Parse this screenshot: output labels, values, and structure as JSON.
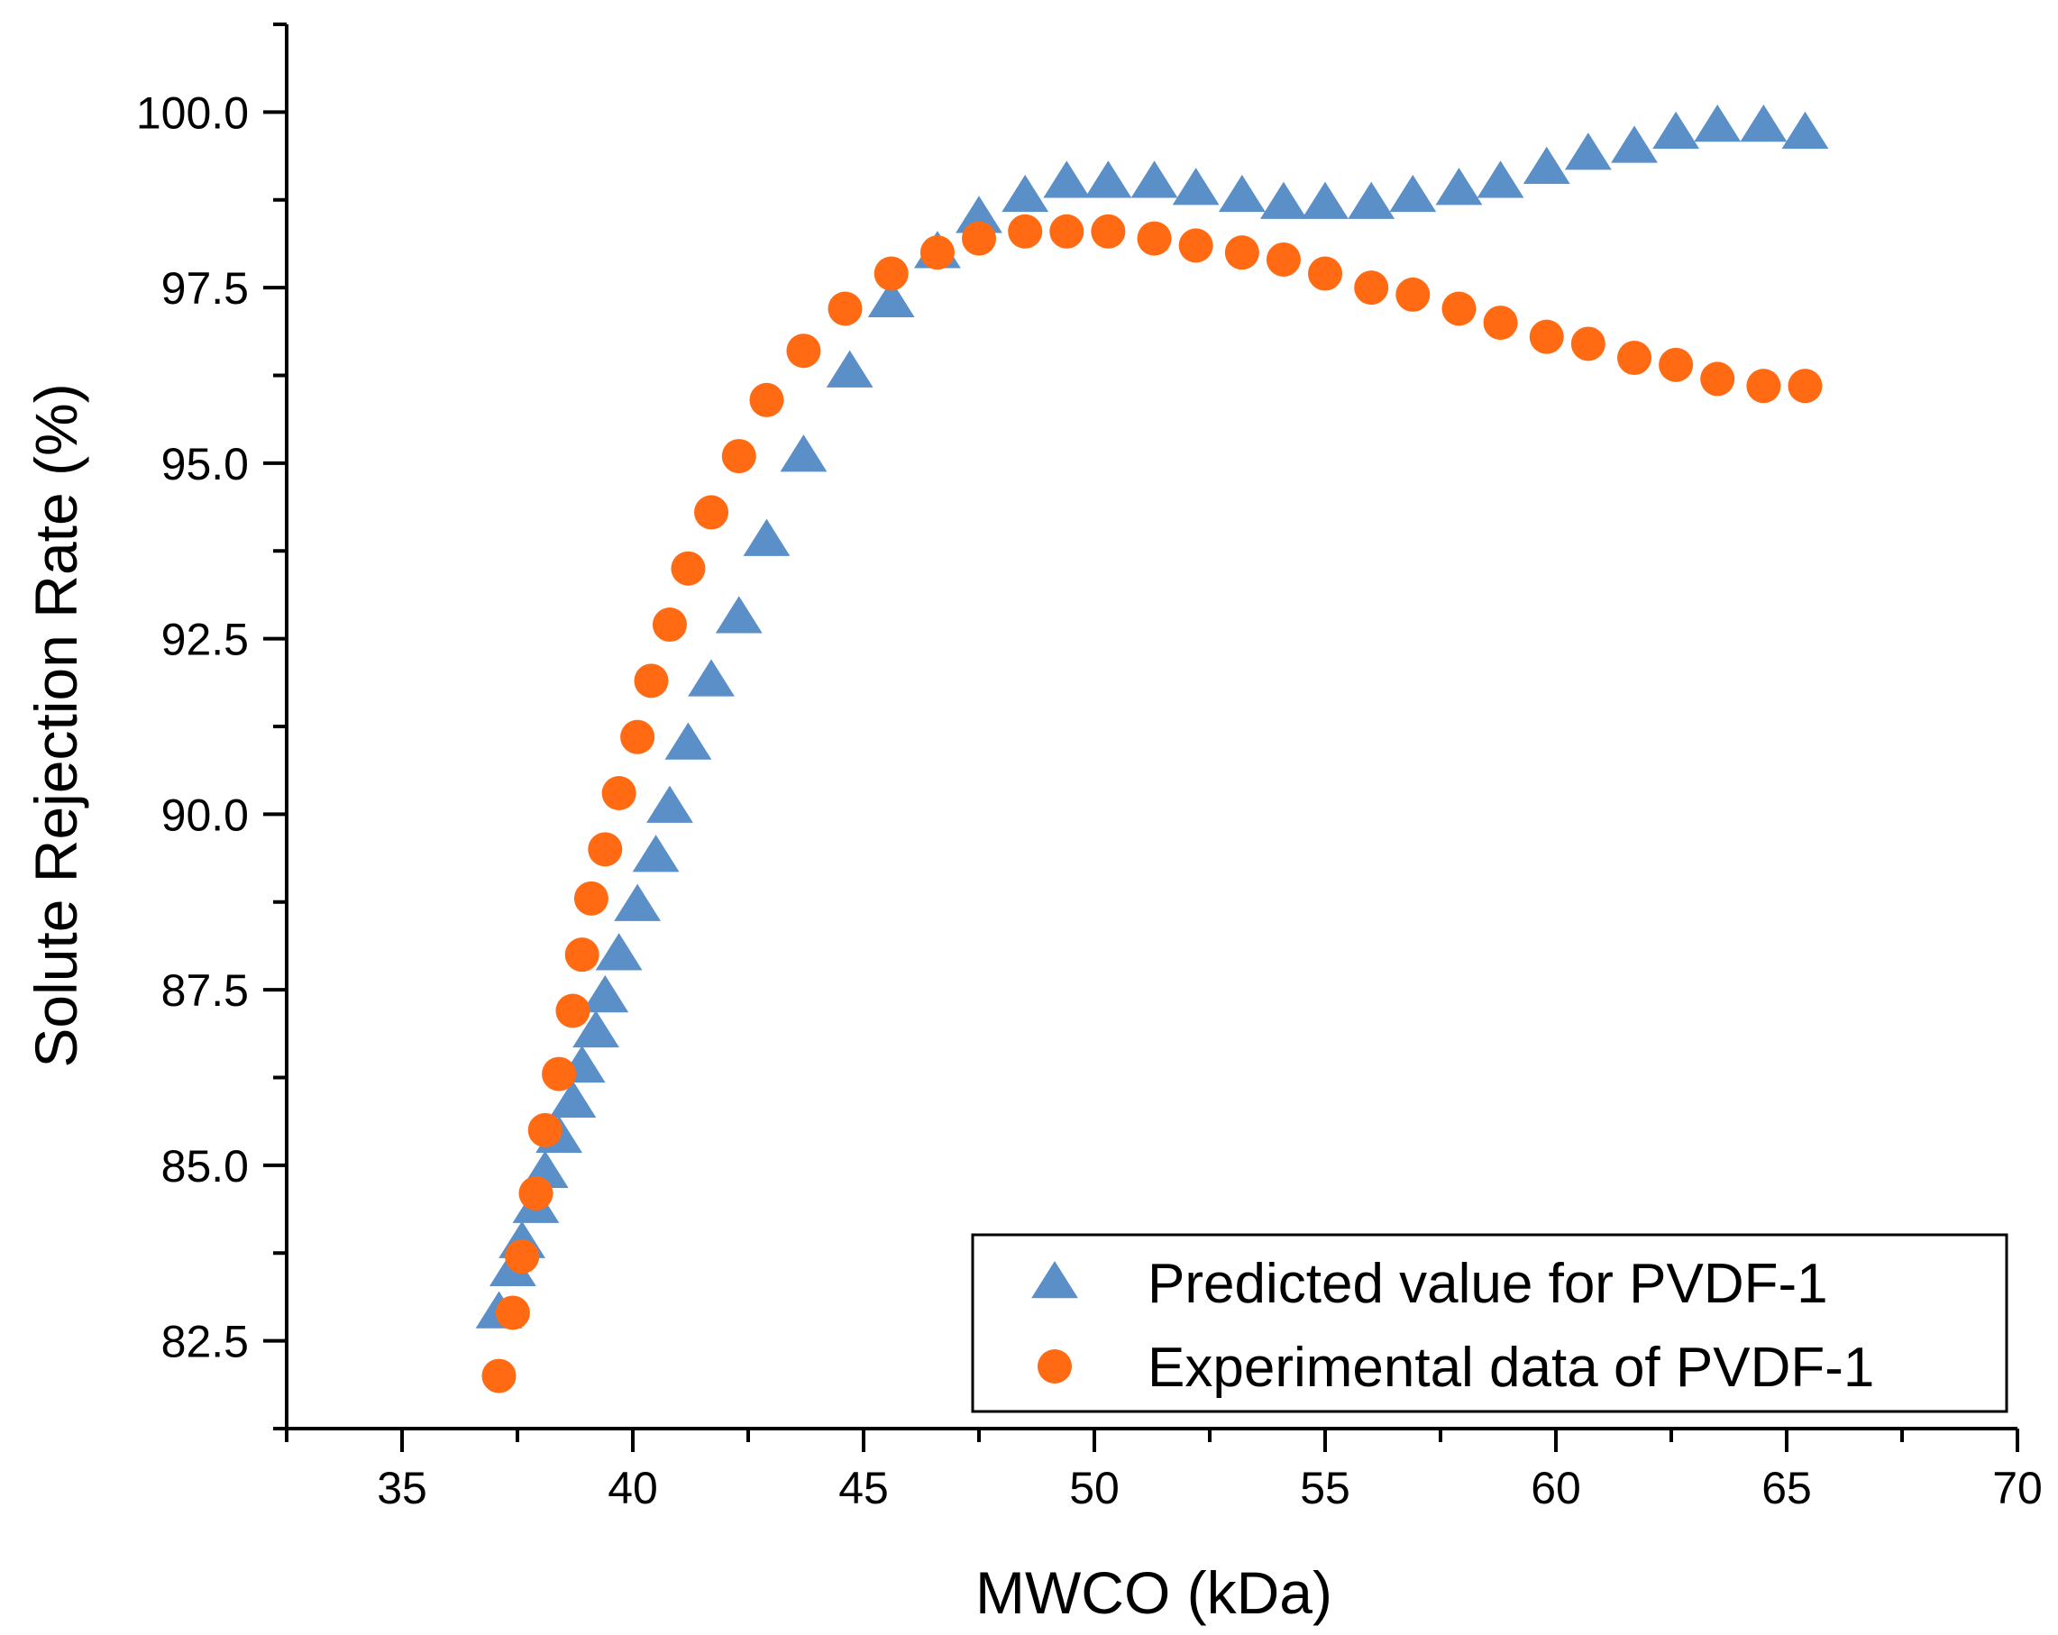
{
  "chart_data": {
    "type": "scatter",
    "title": "",
    "xlabel": "MWCO (kDa)",
    "ylabel": "Solute Rejection Rate (%)",
    "xlim": [
      32.5,
      70
    ],
    "ylim": [
      81.25,
      101.25
    ],
    "x_ticks": [
      35,
      40,
      45,
      50,
      55,
      60,
      65,
      70
    ],
    "x_tick_labels": [
      "35",
      "40",
      "45",
      "50",
      "55",
      "60",
      "65",
      "70"
    ],
    "y_ticks": [
      82.5,
      85.0,
      87.5,
      90.0,
      92.5,
      95.0,
      97.5,
      100.0
    ],
    "y_tick_labels": [
      "82.5",
      "85.0",
      "87.5",
      "90.0",
      "92.5",
      "95.0",
      "97.5",
      "100.0"
    ],
    "grid": false,
    "legend_position": "bottom-right",
    "series": [
      {
        "name": "Predicted value for PVDF-1",
        "marker": "triangle",
        "color": "#5B8FC7",
        "x": [
          37.1,
          37.4,
          37.6,
          37.9,
          38.1,
          38.4,
          38.7,
          38.9,
          39.2,
          39.4,
          39.7,
          40.1,
          40.5,
          40.8,
          41.2,
          41.7,
          42.3,
          42.9,
          43.7,
          44.7,
          45.6,
          46.6,
          47.5,
          48.5,
          49.4,
          50.3,
          51.3,
          52.2,
          53.2,
          54.1,
          55.0,
          56.0,
          56.9,
          57.9,
          58.8,
          59.8,
          60.7,
          61.7,
          62.6,
          63.5,
          64.5,
          65.4
        ],
        "y": [
          82.9,
          83.5,
          83.9,
          84.4,
          84.9,
          85.4,
          85.9,
          86.4,
          86.9,
          87.4,
          88.0,
          88.7,
          89.4,
          90.1,
          91.0,
          91.9,
          92.8,
          93.9,
          95.1,
          96.3,
          97.3,
          98.0,
          98.5,
          98.8,
          99.0,
          99.0,
          99.0,
          98.9,
          98.8,
          98.7,
          98.7,
          98.7,
          98.8,
          98.9,
          99.0,
          99.2,
          99.4,
          99.5,
          99.7,
          99.8,
          99.8,
          99.7
        ]
      },
      {
        "name": "Experimental data of PVDF-1",
        "marker": "circle",
        "color": "#FF6A13",
        "x": [
          37.1,
          37.4,
          37.6,
          37.9,
          38.1,
          38.4,
          38.7,
          38.9,
          39.1,
          39.4,
          39.7,
          40.1,
          40.4,
          40.8,
          41.2,
          41.7,
          42.3,
          42.9,
          43.7,
          44.6,
          45.6,
          46.6,
          47.5,
          48.5,
          49.4,
          50.3,
          51.3,
          52.2,
          53.2,
          54.1,
          55.0,
          56.0,
          56.9,
          57.9,
          58.8,
          59.8,
          60.7,
          61.7,
          62.6,
          63.5,
          64.5,
          65.4
        ],
        "y": [
          82.0,
          82.9,
          83.7,
          84.6,
          85.5,
          86.3,
          87.2,
          88.0,
          88.8,
          89.5,
          90.3,
          91.1,
          91.9,
          92.7,
          93.5,
          94.3,
          95.1,
          95.9,
          96.6,
          97.2,
          97.7,
          98.0,
          98.2,
          98.3,
          98.3,
          98.3,
          98.2,
          98.1,
          98.0,
          97.9,
          97.7,
          97.5,
          97.4,
          97.2,
          97.0,
          96.8,
          96.7,
          96.5,
          96.4,
          96.2,
          96.1,
          96.1
        ]
      }
    ]
  }
}
